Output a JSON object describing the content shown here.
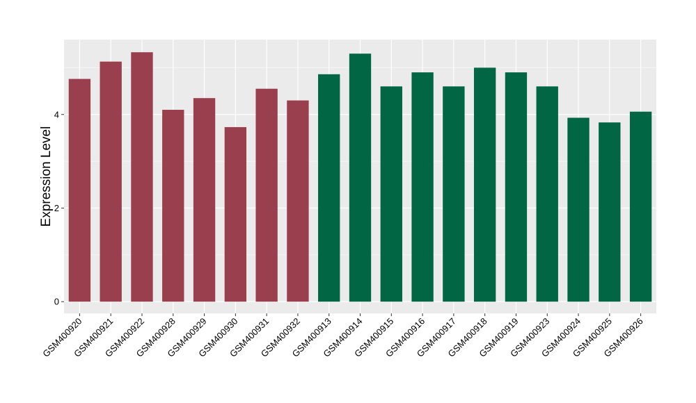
{
  "chart_data": {
    "type": "bar",
    "title": "",
    "xlabel": "",
    "ylabel": "Expression Level",
    "ylim": [
      -0.25,
      5.6
    ],
    "yticks": [
      0,
      2,
      4
    ],
    "grid": true,
    "legend": "none",
    "categories": [
      "GSM400920",
      "GSM400921",
      "GSM400922",
      "GSM400928",
      "GSM400929",
      "GSM400930",
      "GSM400931",
      "GSM400932",
      "GSM400913",
      "GSM400914",
      "GSM400915",
      "GSM400916",
      "GSM400917",
      "GSM400918",
      "GSM400919",
      "GSM400923",
      "GSM400924",
      "GSM400925",
      "GSM400926"
    ],
    "values": [
      4.76,
      5.13,
      5.33,
      4.1,
      4.35,
      3.73,
      4.55,
      4.3,
      4.86,
      5.3,
      4.6,
      4.9,
      4.6,
      5.0,
      4.9,
      4.6,
      3.93,
      3.83,
      4.06
    ],
    "bar_colors": [
      "#9a3f4e",
      "#9a3f4e",
      "#9a3f4e",
      "#9a3f4e",
      "#9a3f4e",
      "#9a3f4e",
      "#9a3f4e",
      "#9a3f4e",
      "#006644",
      "#006644",
      "#006644",
      "#006644",
      "#006644",
      "#006644",
      "#006644",
      "#006644",
      "#006644",
      "#006644",
      "#006644"
    ],
    "colors": {
      "panel_background": "#ebebeb",
      "grid_major": "#ffffff",
      "grid_minor": "#f5f5f5",
      "group_1": "#9a3f4e",
      "group_2": "#006644"
    }
  }
}
